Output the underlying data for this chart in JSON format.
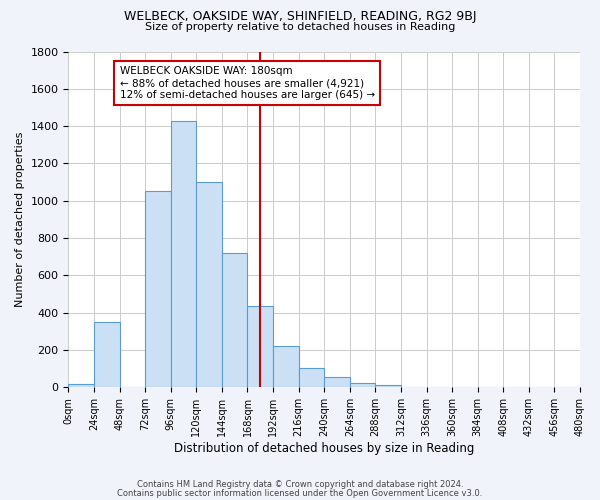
{
  "title1": "WELBECK, OAKSIDE WAY, SHINFIELD, READING, RG2 9BJ",
  "title2": "Size of property relative to detached houses in Reading",
  "xlabel": "Distribution of detached houses by size in Reading",
  "ylabel": "Number of detached properties",
  "bar_edges": [
    0,
    24,
    48,
    72,
    96,
    120,
    144,
    168,
    192,
    216,
    240,
    264,
    288,
    312,
    336,
    360,
    384,
    408,
    432,
    456,
    480
  ],
  "bar_heights": [
    20,
    350,
    0,
    1050,
    1430,
    1100,
    720,
    435,
    220,
    105,
    55,
    25,
    15,
    5,
    0,
    0,
    0,
    0,
    0,
    0
  ],
  "bar_facecolor": "#cce0f5",
  "bar_edgecolor": "#5b9bd5",
  "vline_x": 180,
  "vline_color": "#cc0000",
  "annotation_line1": "WELBECK OAKSIDE WAY: 180sqm",
  "annotation_line2": "← 88% of detached houses are smaller (4,921)",
  "annotation_line3": "12% of semi-detached houses are larger (645) →",
  "annotation_box_edgecolor": "#cc0000",
  "annotation_box_facecolor": "#ffffff",
  "ylim": [
    0,
    1800
  ],
  "yticks": [
    0,
    200,
    400,
    600,
    800,
    1000,
    1200,
    1400,
    1600,
    1800
  ],
  "grid_color": "#cccccc",
  "plot_bg_color": "#ffffff",
  "fig_bg_color": "#f0f4fa",
  "footer1": "Contains HM Land Registry data © Crown copyright and database right 2024.",
  "footer2": "Contains public sector information licensed under the Open Government Licence v3.0."
}
